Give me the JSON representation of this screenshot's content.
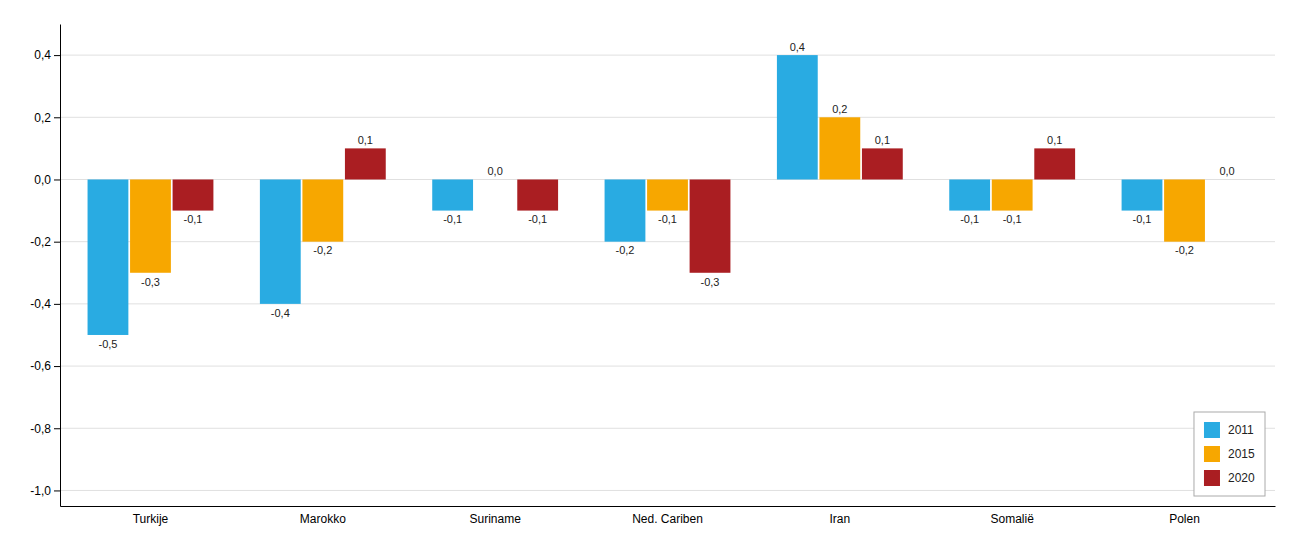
{
  "chart_data": {
    "type": "bar",
    "categories": [
      "Turkije",
      "Marokko",
      "Suriname",
      "Ned. Cariben",
      "Iran",
      "Somalië",
      "Polen"
    ],
    "series": [
      {
        "name": "2011",
        "color": "#29ABE2",
        "values": [
          -0.5,
          -0.4,
          -0.1,
          -0.2,
          0.4,
          -0.1,
          -0.1
        ],
        "value_labels": [
          "-0,5",
          "-0,4",
          "-0,1",
          "-0,2",
          "0,4",
          "-0,1",
          "-0,1"
        ]
      },
      {
        "name": "2015",
        "color": "#F7A700",
        "values": [
          -0.3,
          -0.2,
          0.0,
          -0.1,
          0.2,
          -0.1,
          -0.2
        ],
        "value_labels": [
          "-0,3",
          "-0,2",
          "0,0",
          "-0,1",
          "0,2",
          "-0,1",
          "-0,2"
        ]
      },
      {
        "name": "2020",
        "color": "#AA1E22",
        "values": [
          -0.1,
          0.1,
          -0.1,
          -0.3,
          0.1,
          0.1,
          0.0
        ],
        "value_labels": [
          "-0,1",
          "0,1",
          "-0,1",
          "-0,3",
          "0,1",
          "0,1",
          "0,0"
        ]
      }
    ],
    "ylim": [
      -1.05,
      0.5
    ],
    "yticks": [
      {
        "value": -1.0,
        "label": "-1,0"
      },
      {
        "value": -0.8,
        "label": "-0,8"
      },
      {
        "value": -0.6,
        "label": "-0,6"
      },
      {
        "value": -0.4,
        "label": "-0,4"
      },
      {
        "value": -0.2,
        "label": "-0,2"
      },
      {
        "value": 0.0,
        "label": "0,0"
      },
      {
        "value": 0.2,
        "label": "0,2"
      },
      {
        "value": 0.4,
        "label": "0,4"
      }
    ],
    "grid": true,
    "legend": "lower right",
    "data_labels": true
  }
}
